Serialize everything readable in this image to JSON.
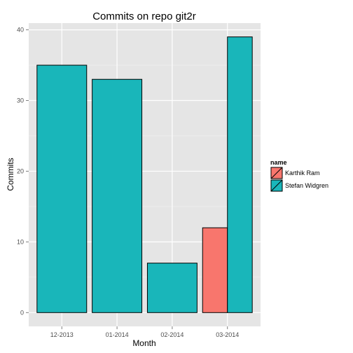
{
  "chart_data": {
    "type": "bar",
    "title": "Commits on repo git2r",
    "xlabel": "Month",
    "ylabel": "Commits",
    "categories": [
      "12-2013",
      "01-2014",
      "02-2014",
      "03-2014"
    ],
    "series": [
      {
        "name": "Karthik Ram",
        "color": "#F8766D",
        "values": [
          null,
          null,
          null,
          12
        ]
      },
      {
        "name": "Stefan Widgren",
        "color": "#19B6BA",
        "values": [
          35,
          33,
          7,
          39
        ]
      }
    ],
    "ylim": [
      -1.95,
      40.95
    ],
    "yticks": [
      0,
      10,
      20,
      30,
      40
    ],
    "grid": true,
    "legend": {
      "title": "name",
      "position": "right"
    },
    "panel_background": "#E5E5E5"
  }
}
